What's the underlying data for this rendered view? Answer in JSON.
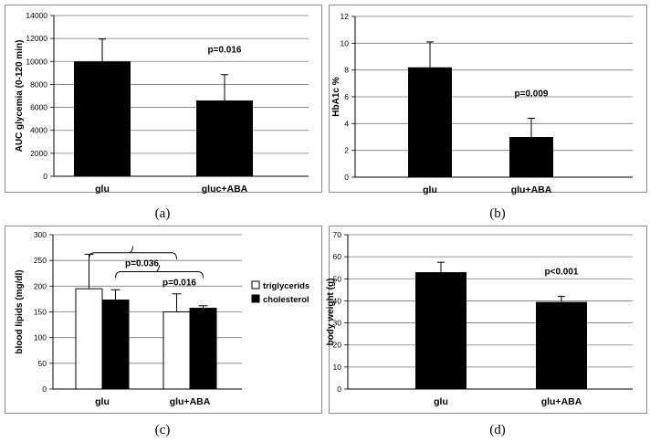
{
  "chart_data": [
    {
      "type": "bar",
      "panel_label": "(a)",
      "categories": [
        "glu",
        "gluc+ABA"
      ],
      "values": [
        10000,
        6600
      ],
      "errors": [
        1950,
        2250
      ],
      "ylabel": "AUC glycemia (0-120 min)",
      "ylim": [
        0,
        14000
      ],
      "yticks": [
        0,
        2000,
        4000,
        6000,
        8000,
        10000,
        12000,
        14000
      ],
      "grid": true,
      "annotations": [
        {
          "text": "p=0.016",
          "category": "gluc+ABA"
        }
      ]
    },
    {
      "type": "bar",
      "panel_label": "(b)",
      "categories": [
        "glu",
        "glu+ABA"
      ],
      "values": [
        8.2,
        3.0
      ],
      "errors": [
        1.9,
        1.4
      ],
      "ylabel": "HbA1c %",
      "ylim": [
        0,
        12
      ],
      "yticks": [
        0,
        2,
        4,
        6,
        8,
        10,
        12
      ],
      "grid": true,
      "annotations": [
        {
          "text": "p=0.009",
          "category": "glu+ABA"
        }
      ]
    },
    {
      "type": "bar",
      "panel_label": "(c)",
      "categories": [
        "glu",
        "glu+ABA"
      ],
      "series": [
        {
          "name": "triglycerids",
          "values": [
            195,
            150
          ],
          "errors": [
            67,
            35
          ],
          "color": "#ffffff"
        },
        {
          "name": "cholesterol",
          "values": [
            173,
            157
          ],
          "errors": [
            20,
            5
          ],
          "color": "#000000"
        }
      ],
      "ylabel": "blood lipids (mg/dl)",
      "ylim": [
        0,
        300
      ],
      "yticks": [
        0,
        50,
        100,
        150,
        200,
        250,
        300
      ],
      "grid": true,
      "legend": "right",
      "annotations": [
        {
          "text": "p=0.036"
        },
        {
          "text": "p=0.016"
        }
      ]
    },
    {
      "type": "bar",
      "panel_label": "(d)",
      "categories": [
        "glu",
        "glu+ABA"
      ],
      "values": [
        53,
        39.5
      ],
      "errors": [
        4.5,
        2.5
      ],
      "ylabel": "body weight (g)",
      "ylim": [
        0,
        70
      ],
      "yticks": [
        0,
        10,
        20,
        30,
        40,
        50,
        60,
        70
      ],
      "grid": true,
      "annotations": [
        {
          "text": "p<0.001",
          "category": "glu+ABA"
        }
      ]
    }
  ]
}
